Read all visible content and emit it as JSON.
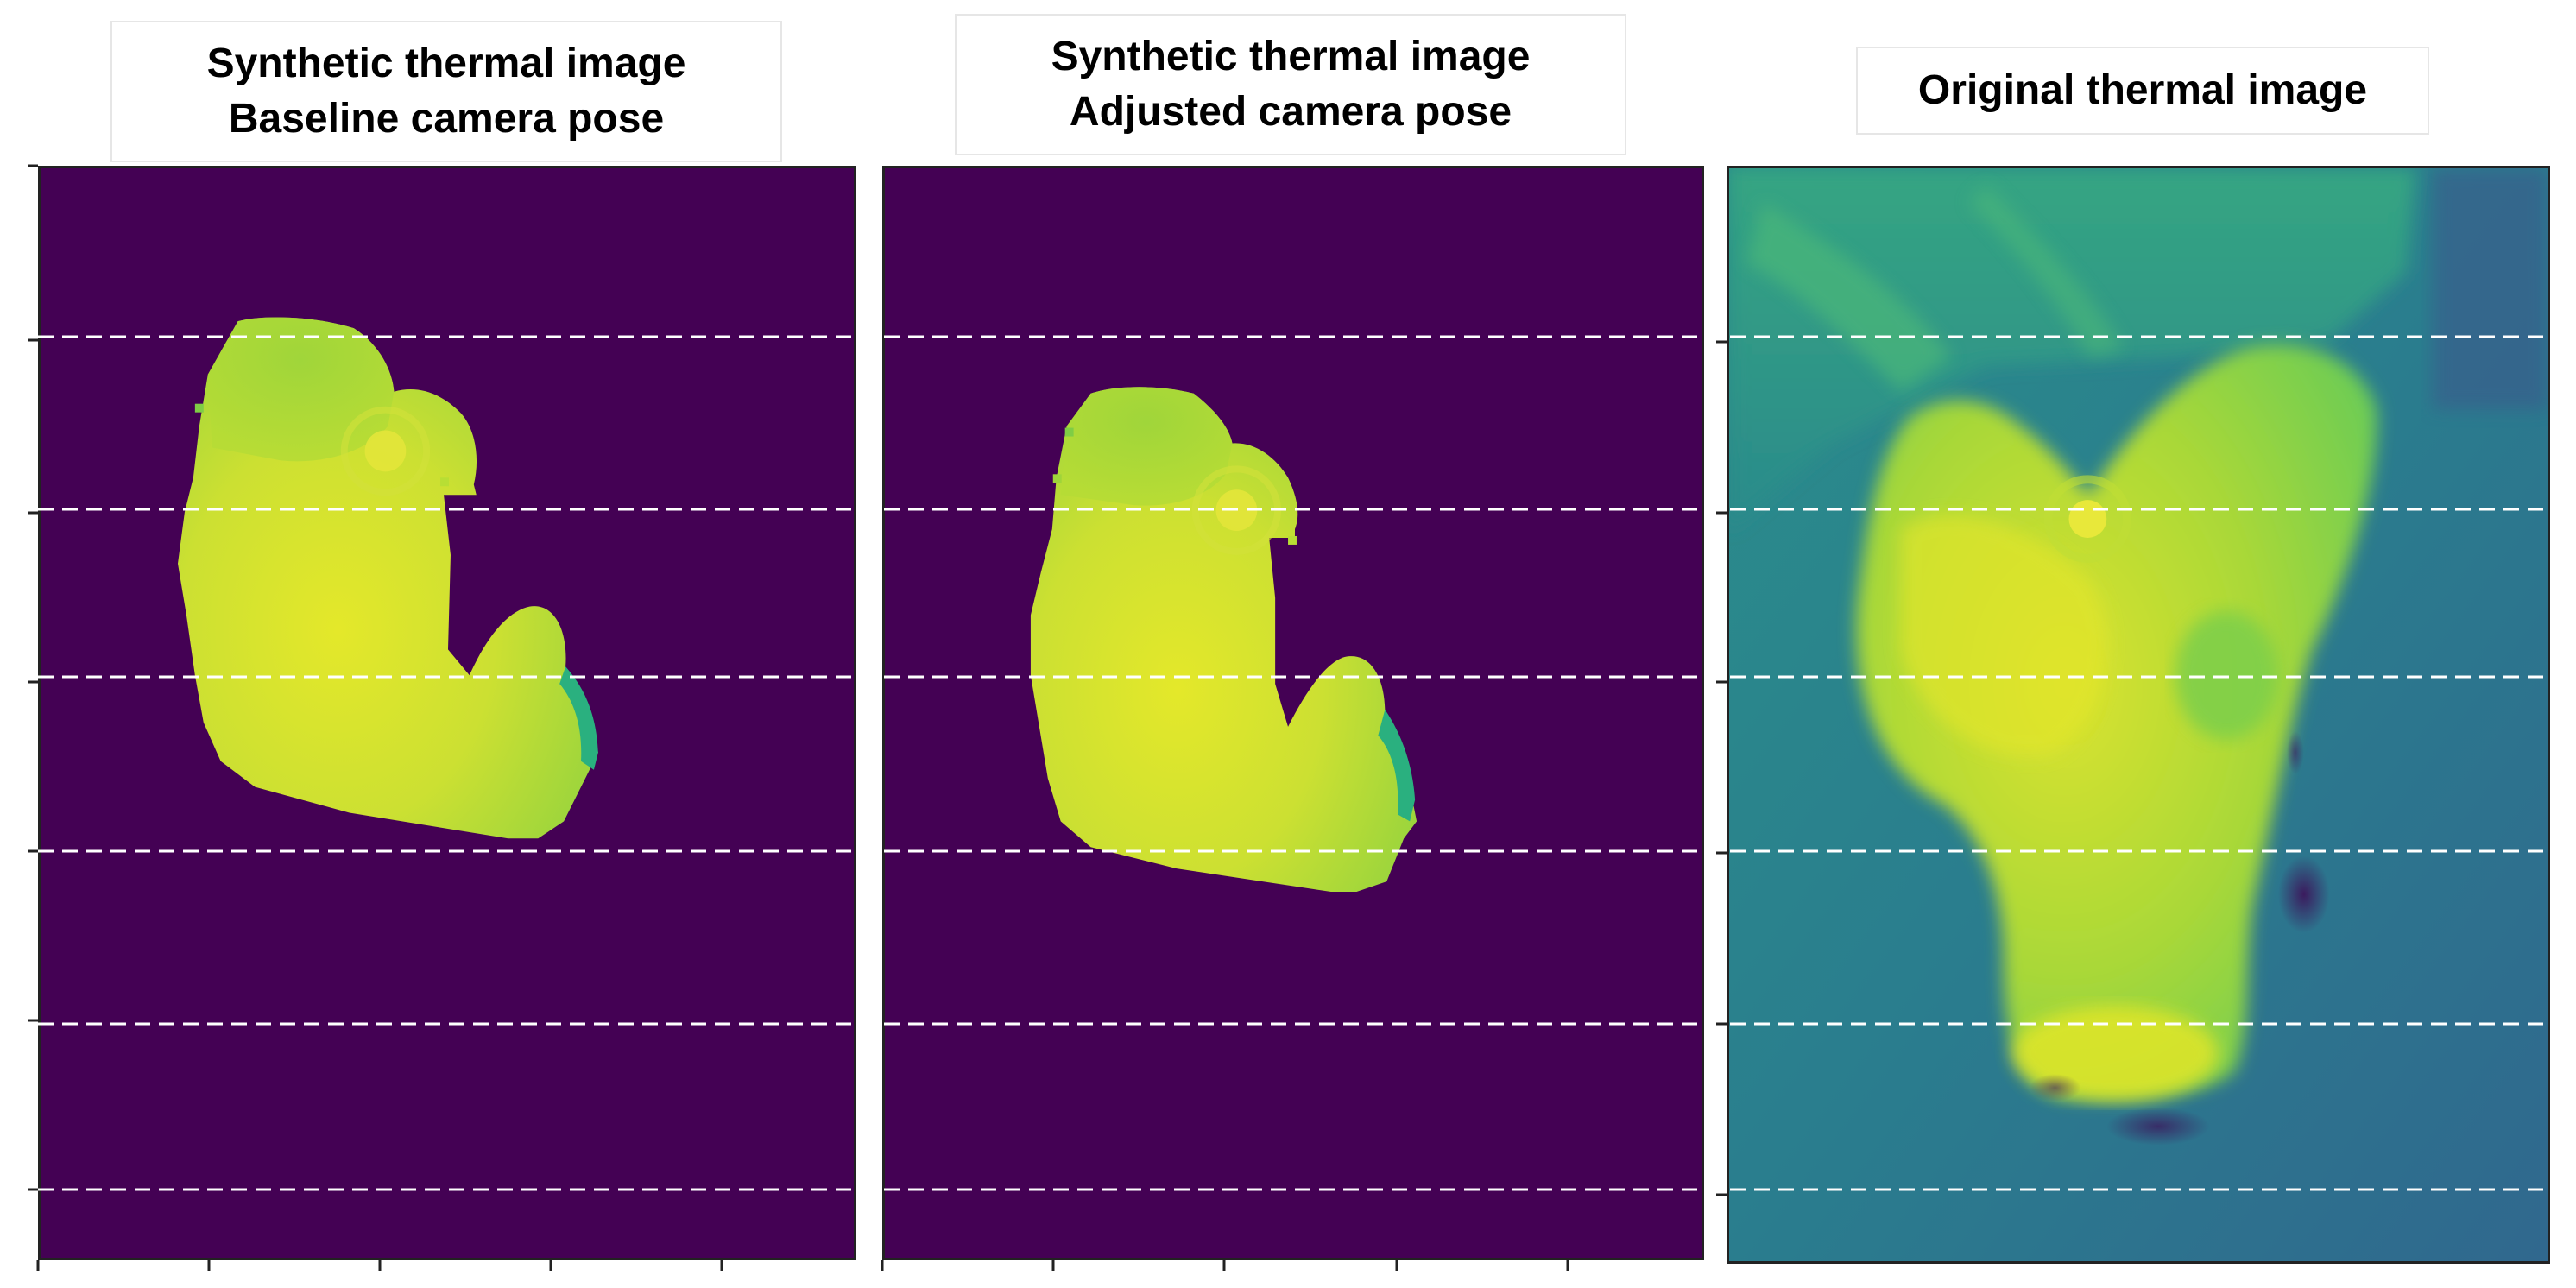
{
  "panels": [
    {
      "title_line1": "Synthetic thermal image",
      "title_line2": "Baseline camera pose",
      "content": "synthetic"
    },
    {
      "title_line1": "Synthetic thermal image",
      "title_line2": "Adjusted camera pose",
      "content": "synthetic"
    },
    {
      "title_line1": "Original thermal image",
      "title_line2": "",
      "content": "original"
    }
  ],
  "colors": {
    "background_purple": "#440154",
    "hot_yellow": "#e1e52a",
    "warm_green": "#9ad43a",
    "mid_green": "#5ec962",
    "teal": "#2f7f8e",
    "blue_teal": "#31678d",
    "deep_purple": "#3b1b5e",
    "guide_line": "#ffffff"
  },
  "guide_lines": {
    "style": "dashed",
    "count": 6
  }
}
